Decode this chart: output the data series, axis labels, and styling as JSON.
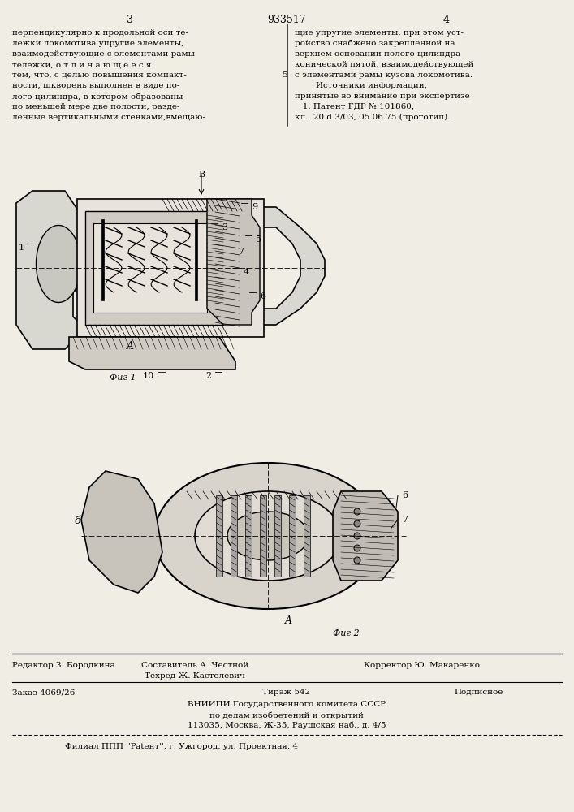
{
  "bg_color": "#f5f5f0",
  "page_color": "#f0ede5",
  "title_page_number_left": "3",
  "title_patent_number": "933517",
  "title_page_number_right": "4",
  "text_left_col": [
    "перпендикулярно к продольной оси те-",
    "лежки локомотива упругие элементы,",
    "взаимодействующие с элементами рамы",
    "тележки, о т л и ч а ю щ е е с я",
    "тем, что, с целью повышения компакт-",
    "ности, шкворень выполнен в виде по-",
    "лого цилиндра, в котором образованы",
    "по меньшей мере две полости, разде-",
    "ленные вертикальными стенками,вмещаю-"
  ],
  "text_right_col": [
    "щие упругие элементы, при этом уст-",
    "ройство снабжено закрепленной на",
    "верхнем основании полого цилиндра",
    "конической пятой, взаимодействующей",
    "с элементами рамы кузова локомотива.",
    "        Источники информации,",
    "принятые во внимание при экспертизе",
    "   1. Патент ГДР № 101860,",
    "кл.  20 d 3/03, 05.06.75 (прототип)."
  ],
  "fig1_caption": "Фиг 1",
  "fig2_caption": "Фиг 2",
  "footer_line1_left": "Редактор З. Бородкина",
  "footer_line1_center": "Составитель А. Честной",
  "footer_line1_right": "Корректор Ю. Макаренко",
  "footer_line2_left": "Техред Ж. Кастелевич",
  "footer_line3": "Заказ 4069/26",
  "footer_line3_center": "Тираж 542",
  "footer_line3_right": "Подписное",
  "footer_line4": "ВНИИПИ Государственного комитета СССР",
  "footer_line5": "по делам изобретений и открытий",
  "footer_line6": "113035, Москва, Ж-35, Раушская наб., д. 4/5",
  "footer_line7": "Филиал ППП ''Patент'', г. Ужгород, ул. Проектная, 4",
  "separator_number": "5"
}
